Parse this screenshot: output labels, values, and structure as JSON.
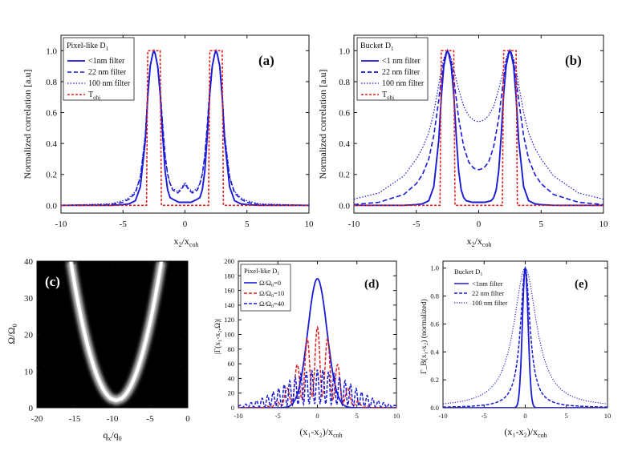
{
  "chart_data": [
    {
      "panel": "(a)",
      "type": "line",
      "xlabel": "x₂/x_coh",
      "ylabel": "Normalized correlation [a.u]",
      "xlim": [
        -10,
        10
      ],
      "ylim": [
        -0.05,
        1.1
      ],
      "xticks": [
        -10,
        -5,
        0,
        5,
        10
      ],
      "yticks": [
        0.0,
        0.2,
        0.4,
        0.6,
        0.8,
        1.0
      ],
      "legend_title": "Pixel-like D₁",
      "legend_position": "top-left",
      "series": [
        {
          "name": "<1nm filter",
          "color": "#1a1ad6",
          "dash": "solid",
          "x": [
            -10,
            -6,
            -5,
            -4.5,
            -4,
            -3.6,
            -3.2,
            -3,
            -2.8,
            -2.6,
            -2.5,
            -2.4,
            -2.2,
            -2,
            -1.8,
            -1.6,
            -1.4,
            -1.2,
            -1,
            -0.5,
            0,
            0.5,
            1,
            1.2,
            1.4,
            1.6,
            1.8,
            2,
            2.2,
            2.4,
            2.5,
            2.6,
            2.8,
            3,
            3.2,
            3.6,
            4,
            4.5,
            5,
            6,
            10
          ],
          "y": [
            0,
            0,
            0.005,
            0.01,
            0.03,
            0.12,
            0.42,
            0.7,
            0.9,
            0.98,
            1.0,
            0.98,
            0.9,
            0.72,
            0.45,
            0.22,
            0.1,
            0.05,
            0.04,
            0.02,
            0.02,
            0.02,
            0.04,
            0.05,
            0.1,
            0.22,
            0.45,
            0.72,
            0.9,
            0.98,
            1.0,
            0.98,
            0.9,
            0.7,
            0.42,
            0.12,
            0.03,
            0.01,
            0.005,
            0,
            0
          ]
        },
        {
          "name": "22 nm filter",
          "color": "#1a1ad6",
          "dash": "dashed",
          "x": [
            -10,
            -6,
            -5,
            -4.5,
            -4,
            -3.6,
            -3.2,
            -3,
            -2.8,
            -2.6,
            -2.5,
            -2.4,
            -2.2,
            -2,
            -1.8,
            -1.6,
            -1.4,
            -1.2,
            -1,
            -0.6,
            -0.3,
            0,
            0.3,
            0.6,
            1,
            1.2,
            1.4,
            1.6,
            1.8,
            2,
            2.2,
            2.4,
            2.5,
            2.6,
            2.8,
            3,
            3.2,
            3.6,
            4,
            4.5,
            5,
            6,
            10
          ],
          "y": [
            0,
            0.005,
            0.02,
            0.04,
            0.08,
            0.18,
            0.45,
            0.72,
            0.9,
            0.98,
            1.0,
            0.98,
            0.9,
            0.75,
            0.52,
            0.32,
            0.2,
            0.14,
            0.1,
            0.08,
            0.1,
            0.14,
            0.1,
            0.08,
            0.1,
            0.14,
            0.2,
            0.32,
            0.52,
            0.75,
            0.9,
            0.98,
            1.0,
            0.98,
            0.9,
            0.72,
            0.45,
            0.18,
            0.08,
            0.04,
            0.02,
            0.005,
            0
          ]
        },
        {
          "name": "100 nm filter",
          "color": "#1a1ad6",
          "dash": "dotted",
          "x": [
            -10,
            -6,
            -5,
            -4.5,
            -4,
            -3.6,
            -3.2,
            -3,
            -2.8,
            -2.6,
            -2.5,
            -2.4,
            -2.2,
            -2,
            -1.8,
            -1.6,
            -1.4,
            -1.2,
            -1,
            -0.6,
            -0.3,
            0,
            0.3,
            0.6,
            1,
            1.2,
            1.4,
            1.6,
            1.8,
            2,
            2.2,
            2.4,
            2.5,
            2.6,
            2.8,
            3,
            3.2,
            3.6,
            4,
            4.5,
            5,
            6,
            10
          ],
          "y": [
            0,
            0.01,
            0.03,
            0.05,
            0.09,
            0.19,
            0.46,
            0.72,
            0.9,
            0.98,
            1.0,
            0.98,
            0.9,
            0.75,
            0.52,
            0.32,
            0.2,
            0.14,
            0.11,
            0.09,
            0.11,
            0.15,
            0.11,
            0.09,
            0.11,
            0.14,
            0.2,
            0.32,
            0.52,
            0.75,
            0.9,
            0.98,
            1.0,
            0.98,
            0.9,
            0.72,
            0.46,
            0.19,
            0.09,
            0.05,
            0.03,
            0.01,
            0
          ]
        },
        {
          "name": "T_obj",
          "color": "#e02020",
          "dash": "short-dash",
          "x": [
            -10,
            -3.1,
            -3.0,
            -2.0,
            -1.9,
            1.9,
            2.0,
            3.0,
            3.1,
            10
          ],
          "y": [
            0,
            0,
            1,
            1,
            0,
            0,
            1,
            1,
            0,
            0
          ]
        }
      ]
    },
    {
      "panel": "(b)",
      "type": "line",
      "xlabel": "x₂/x_coh",
      "ylabel": "Normalized correlation [a.u]",
      "xlim": [
        -10,
        10
      ],
      "ylim": [
        -0.05,
        1.1
      ],
      "xticks": [
        -10,
        -5,
        0,
        5,
        10
      ],
      "yticks": [
        0.0,
        0.2,
        0.4,
        0.6,
        0.8,
        1.0
      ],
      "legend_title": "Bucket D₁",
      "legend_position": "top-left",
      "series": [
        {
          "name": "<1 nm filter",
          "color": "#1a1ad6",
          "dash": "solid",
          "x": [
            -10,
            -6,
            -5,
            -4.5,
            -4,
            -3.6,
            -3.2,
            -3,
            -2.8,
            -2.6,
            -2.5,
            -2.4,
            -2.2,
            -2,
            -1.8,
            -1.6,
            -1.4,
            -1.2,
            -1,
            -0.5,
            0,
            0.5,
            1,
            1.2,
            1.4,
            1.6,
            1.8,
            2,
            2.2,
            2.4,
            2.5,
            2.6,
            2.8,
            3,
            3.2,
            3.6,
            4,
            4.5,
            5,
            6,
            10
          ],
          "y": [
            0,
            0,
            0.005,
            0.01,
            0.03,
            0.12,
            0.42,
            0.7,
            0.9,
            0.98,
            1.0,
            0.98,
            0.9,
            0.72,
            0.45,
            0.22,
            0.1,
            0.05,
            0.03,
            0.02,
            0.02,
            0.02,
            0.03,
            0.05,
            0.1,
            0.22,
            0.45,
            0.72,
            0.9,
            0.98,
            1.0,
            0.98,
            0.9,
            0.7,
            0.42,
            0.12,
            0.03,
            0.01,
            0.005,
            0,
            0
          ]
        },
        {
          "name": "22 nm filter",
          "color": "#1a1ad6",
          "dash": "dashed",
          "x": [
            -10,
            -8,
            -6,
            -5,
            -4.5,
            -4,
            -3.6,
            -3.2,
            -3,
            -2.8,
            -2.6,
            -2.5,
            -2.4,
            -2.2,
            -2,
            -1.6,
            -1.2,
            -0.8,
            -0.4,
            0,
            0.4,
            0.8,
            1.2,
            1.6,
            2,
            2.2,
            2.4,
            2.5,
            2.6,
            2.8,
            3,
            3.2,
            3.6,
            4,
            4.5,
            5,
            6,
            8,
            10
          ],
          "y": [
            0.005,
            0.02,
            0.07,
            0.14,
            0.2,
            0.3,
            0.45,
            0.68,
            0.82,
            0.93,
            0.99,
            1.0,
            0.99,
            0.93,
            0.82,
            0.56,
            0.38,
            0.28,
            0.24,
            0.23,
            0.24,
            0.28,
            0.38,
            0.56,
            0.82,
            0.93,
            0.99,
            1.0,
            0.99,
            0.93,
            0.82,
            0.68,
            0.45,
            0.3,
            0.2,
            0.14,
            0.07,
            0.02,
            0.005
          ]
        },
        {
          "name": "100 nm filter",
          "color": "#1a1ad6",
          "dash": "dotted",
          "x": [
            -10,
            -8,
            -6,
            -5,
            -4.5,
            -4,
            -3.6,
            -3.2,
            -3,
            -2.8,
            -2.6,
            -2.5,
            -2.4,
            -2.2,
            -2,
            -1.6,
            -1.2,
            -0.8,
            -0.4,
            0,
            0.4,
            0.8,
            1.2,
            1.6,
            2,
            2.2,
            2.4,
            2.5,
            2.6,
            2.8,
            3,
            3.2,
            3.6,
            4,
            4.5,
            5,
            6,
            8,
            10
          ],
          "y": [
            0.04,
            0.08,
            0.19,
            0.3,
            0.37,
            0.47,
            0.6,
            0.78,
            0.88,
            0.95,
            0.99,
            1.0,
            0.99,
            0.95,
            0.88,
            0.75,
            0.64,
            0.58,
            0.55,
            0.54,
            0.55,
            0.58,
            0.64,
            0.75,
            0.88,
            0.95,
            0.99,
            1.0,
            0.99,
            0.95,
            0.88,
            0.78,
            0.6,
            0.47,
            0.37,
            0.3,
            0.19,
            0.08,
            0.04
          ]
        },
        {
          "name": "T_obj",
          "color": "#e02020",
          "dash": "short-dash",
          "x": [
            -10,
            -3.1,
            -3.0,
            -2.0,
            -1.9,
            1.9,
            2.0,
            3.0,
            3.1,
            10
          ],
          "y": [
            0,
            0,
            1,
            1,
            0,
            0,
            1,
            1,
            0,
            0
          ]
        }
      ]
    },
    {
      "panel": "(c)",
      "type": "heatmap",
      "xlabel": "q_x/q₀",
      "ylabel": "Ω/Ω₀",
      "xlim": [
        -20,
        0
      ],
      "ylim": [
        0,
        40
      ],
      "xticks": [
        -20,
        -15,
        -10,
        -5,
        0
      ],
      "yticks": [
        0,
        10,
        20,
        30,
        40
      ],
      "curve": {
        "vertex_x": -9.5,
        "vertex_y": 2,
        "curvature": 1.05,
        "glow_width": 1.6
      },
      "colors": {
        "background": "#000000",
        "line": "#ffffff"
      }
    },
    {
      "panel": "(d)",
      "type": "line",
      "xlabel": "(x₁-x₂)/x_coh",
      "ylabel": "|Γ(x₁-x₂,Ω)|",
      "xlim": [
        -10,
        10
      ],
      "ylim": [
        0,
        200
      ],
      "xticks": [
        -10,
        -5,
        0,
        5,
        10
      ],
      "yticks": [
        0,
        20,
        40,
        60,
        80,
        100,
        120,
        140,
        160,
        180,
        200
      ],
      "legend_title": "Pixel-like D₁",
      "legend_position": "top-left",
      "series": [
        {
          "name": "Ω/Ω₀=0",
          "color": "#1a1ad6",
          "dash": "solid",
          "peak": 176,
          "width": 1.2,
          "fringe_period": 0,
          "fringe_depth": 0
        },
        {
          "name": "Ω/Ω₀=10",
          "color": "#e02020",
          "dash": "dashed",
          "peak": 110,
          "width": 2.3,
          "fringe_period": 1.3,
          "fringe_depth": 0.85
        },
        {
          "name": "Ω/Ω₀=40",
          "color": "#1a1ad6",
          "dash": "dashed",
          "peak": 52,
          "width": 4.2,
          "fringe_period": 0.7,
          "fringe_depth": 0.9
        }
      ]
    },
    {
      "panel": "(e)",
      "type": "line",
      "xlabel": "(x₁-x₂)/x_coh",
      "ylabel": "Γ_B(x₁-x₂) (normalized)",
      "xlim": [
        -10,
        10
      ],
      "ylim": [
        0,
        1.05
      ],
      "xticks": [
        -10,
        -5,
        0,
        5,
        10
      ],
      "yticks": [
        0.0,
        0.2,
        0.4,
        0.6,
        0.8,
        1.0
      ],
      "legend_title": "Bucket D₁",
      "legend_position": "top-left",
      "series": [
        {
          "name": "<1nm filter",
          "color": "#1a1ad6",
          "dash": "solid",
          "width": 0.35,
          "shape": "gaussian"
        },
        {
          "name": "22 nm filter",
          "color": "#1a1ad6",
          "dash": "dashed",
          "width": 0.7,
          "shape": "lorentzian"
        },
        {
          "name": "100 nm filter",
          "color": "#1a1ad6",
          "dash": "dotted",
          "width": 1.7,
          "shape": "lorentzian"
        }
      ]
    }
  ],
  "labels": {
    "a": {
      "panel_label": "(a)",
      "legend_title": "Pixel-like D",
      "legend_title_sub": "1",
      "legend": [
        "<1nm filter",
        "22 nm filter",
        "100 nm filter",
        "T"
      ],
      "legend_last_sub": "obj",
      "ylabel": "Normalized correlation [a.u]",
      "xlabel_main": "x",
      "xlabel_sub1": "2",
      "xlabel_mid": "/x",
      "xlabel_sub2": "coh"
    },
    "b": {
      "panel_label": "(b)",
      "legend_title": "Bucket D",
      "legend_title_sub": "1",
      "legend": [
        "<1 nm filter",
        "22 nm filter",
        "100 nm filter",
        "T"
      ],
      "legend_last_sub": "obj",
      "ylabel": "Normalized correlation [a.u]",
      "xlabel_main": "x",
      "xlabel_sub1": "2",
      "xlabel_mid": "/x",
      "xlabel_sub2": "coh"
    },
    "c": {
      "panel_label": "(c)",
      "ylabel": "Ω/Ω",
      "ylabel_sub": "0",
      "xlabel_main": "q",
      "xlabel_sub1": "x",
      "xlabel_mid": "/q",
      "xlabel_sub2": "0"
    },
    "d": {
      "panel_label": "(d)",
      "legend_title": "Pixel-like D",
      "legend_title_sub": "1",
      "legend": [
        "Ω/Ω",
        "Ω/Ω",
        "Ω/Ω"
      ],
      "legend_sub": [
        "0",
        "0",
        "0"
      ],
      "legend_tail": [
        "=0",
        "=10",
        "=40"
      ],
      "ylabel": "|Γ(x₁-x₂,Ω)|",
      "xlabel": "(x₁-x₂)/x",
      "xlabel_sub": "coh"
    },
    "e": {
      "panel_label": "(e)",
      "legend_title": "Bucket D",
      "legend_title_sub": "1",
      "legend": [
        "<1nm filter",
        "22 nm filter",
        "100 nm filter"
      ],
      "ylabel": "Γ_B(x₁-x₂) (normalized)",
      "xlabel": "(x₁-x₂)/x",
      "xlabel_sub": "coh"
    }
  }
}
